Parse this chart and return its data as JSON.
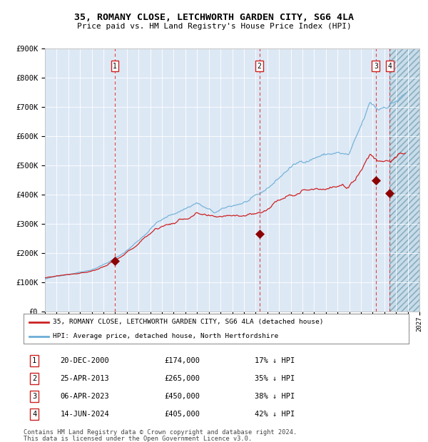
{
  "title": "35, ROMANY CLOSE, LETCHWORTH GARDEN CITY, SG6 4LA",
  "subtitle": "Price paid vs. HM Land Registry's House Price Index (HPI)",
  "ylim": [
    0,
    900000
  ],
  "yticks": [
    0,
    100000,
    200000,
    300000,
    400000,
    500000,
    600000,
    700000,
    800000,
    900000
  ],
  "ytick_labels": [
    "£0",
    "£100K",
    "£200K",
    "£300K",
    "£400K",
    "£500K",
    "£600K",
    "£700K",
    "£800K",
    "£900K"
  ],
  "xlim_start": 1995.0,
  "xlim_end": 2027.0,
  "hpi_color": "#6baed6",
  "price_color": "#cc2222",
  "bg_color": "#dde8f5",
  "legend_line1": "35, ROMANY CLOSE, LETCHWORTH GARDEN CITY, SG6 4LA (detached house)",
  "legend_line2": "HPI: Average price, detached house, North Hertfordshire",
  "sales": [
    {
      "num": 1,
      "date": "20-DEC-2000",
      "year": 2000.97,
      "price": 174000,
      "pct": "17%",
      "dir": "↓"
    },
    {
      "num": 2,
      "date": "25-APR-2013",
      "year": 2013.32,
      "price": 265000,
      "pct": "35%",
      "dir": "↓"
    },
    {
      "num": 3,
      "date": "06-APR-2023",
      "year": 2023.27,
      "price": 450000,
      "pct": "38%",
      "dir": "↓"
    },
    {
      "num": 4,
      "date": "14-JUN-2024",
      "year": 2024.45,
      "price": 405000,
      "pct": "42%",
      "dir": "↓"
    }
  ],
  "footer1": "Contains HM Land Registry data © Crown copyright and database right 2024.",
  "footer2": "This data is licensed under the Open Government Licence v3.0."
}
